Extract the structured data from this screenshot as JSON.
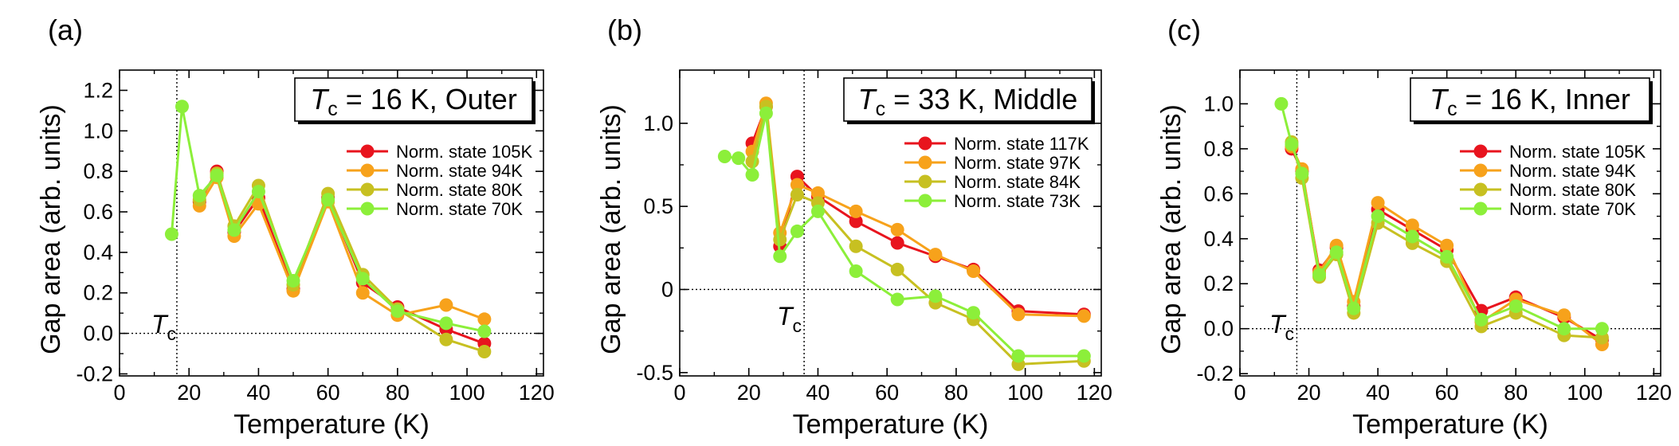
{
  "chart_data": [
    {
      "type": "line",
      "panel_label": "(a)",
      "title_symbol": "T",
      "title_sub": "c",
      "title_rest": " = 16 K, Outer",
      "xlabel": "Temperature (K)",
      "ylabel": "Gap area (arb. units)",
      "xlim": [
        0,
        122
      ],
      "ylim": [
        -0.21,
        1.3
      ],
      "xticks": [
        0,
        20,
        40,
        60,
        80,
        100,
        120
      ],
      "xtick_labels": [
        "0",
        "20",
        "40",
        "60",
        "80",
        "100",
        "120"
      ],
      "yticks": [
        -0.2,
        0,
        0.2,
        0.4,
        0.6,
        0.8,
        1.0,
        1.2
      ],
      "ytick_labels": [
        "-0.2",
        "0.0",
        "0.2",
        "0.4",
        "0.6",
        "0.8",
        "1.0",
        "1.2"
      ],
      "tc_value": 16.5,
      "tc_symbol": "T",
      "tc_sub": "c",
      "zero_line": true,
      "legend_position": "right",
      "series": [
        {
          "name": "Norm. state 105K",
          "color": "#e8141e",
          "x": [
            23,
            28,
            33,
            40,
            50,
            60,
            70,
            80,
            94,
            105
          ],
          "y": [
            0.65,
            0.8,
            0.5,
            0.67,
            0.22,
            0.67,
            0.25,
            0.13,
            0.02,
            -0.05
          ]
        },
        {
          "name": "Norm. state 94K",
          "color": "#f7a21b",
          "x": [
            23,
            28,
            33,
            40,
            50,
            60,
            70,
            80,
            94,
            105
          ],
          "y": [
            0.63,
            0.77,
            0.48,
            0.64,
            0.21,
            0.65,
            0.2,
            0.09,
            0.14,
            0.07
          ]
        },
        {
          "name": "Norm. state 80K",
          "color": "#c7c021",
          "x": [
            23,
            28,
            33,
            40,
            50,
            60,
            70,
            80,
            94,
            105
          ],
          "y": [
            0.66,
            0.79,
            0.53,
            0.73,
            0.24,
            0.69,
            0.29,
            0.12,
            -0.03,
            -0.09
          ]
        },
        {
          "name": "Norm. state 70K",
          "color": "#8cef3a",
          "x": [
            15,
            18,
            23,
            28,
            33,
            40,
            50,
            60,
            70,
            80,
            94,
            105
          ],
          "y": [
            0.49,
            1.12,
            0.68,
            0.78,
            0.51,
            0.7,
            0.26,
            0.66,
            0.27,
            0.11,
            0.05,
            0.01
          ]
        }
      ]
    },
    {
      "type": "line",
      "panel_label": "(b)",
      "title_symbol": "T",
      "title_sub": "c",
      "title_rest": " = 33 K, Middle",
      "xlabel": "Temperature (K)",
      "ylabel": "Gap area (arb. units)",
      "xlim": [
        0,
        122
      ],
      "ylim": [
        -0.52,
        1.32
      ],
      "xticks": [
        0,
        20,
        40,
        60,
        80,
        100,
        120
      ],
      "xtick_labels": [
        "0",
        "20",
        "40",
        "60",
        "80",
        "100",
        "120"
      ],
      "yticks": [
        -0.5,
        0,
        0.5,
        1.0
      ],
      "ytick_labels": [
        "-0.5",
        "0",
        "0.5",
        "1.0"
      ],
      "tc_value": 36,
      "tc_symbol": "T",
      "tc_sub": "c",
      "zero_line": true,
      "legend_position": "right",
      "series": [
        {
          "name": "Norm. state 117K",
          "color": "#e8141e",
          "x": [
            21,
            25,
            29,
            34,
            40,
            51,
            63,
            74,
            85,
            98,
            117
          ],
          "y": [
            0.88,
            1.1,
            0.26,
            0.68,
            0.56,
            0.41,
            0.28,
            0.2,
            0.12,
            -0.13,
            -0.15
          ]
        },
        {
          "name": "Norm. state 97K",
          "color": "#f7a21b",
          "x": [
            21,
            25,
            29,
            34,
            40,
            51,
            63,
            74,
            85,
            98,
            117
          ],
          "y": [
            0.83,
            1.12,
            0.34,
            0.63,
            0.58,
            0.47,
            0.36,
            0.21,
            0.11,
            -0.15,
            -0.16
          ]
        },
        {
          "name": "Norm. state 84K",
          "color": "#c7c021",
          "x": [
            21,
            25,
            29,
            34,
            40,
            51,
            63,
            74,
            85,
            98,
            117
          ],
          "y": [
            0.77,
            1.1,
            0.3,
            0.57,
            0.52,
            0.26,
            0.12,
            -0.08,
            -0.18,
            -0.45,
            -0.43
          ]
        },
        {
          "name": "Norm. state 73K",
          "color": "#8cef3a",
          "x": [
            13,
            17,
            21,
            25,
            29,
            34,
            40,
            51,
            63,
            74,
            85,
            98,
            117
          ],
          "y": [
            0.8,
            0.79,
            0.69,
            1.06,
            0.2,
            0.35,
            0.47,
            0.11,
            -0.06,
            -0.04,
            -0.14,
            -0.4,
            -0.4
          ]
        }
      ]
    },
    {
      "type": "line",
      "panel_label": "(c)",
      "title_symbol": "T",
      "title_sub": "c",
      "title_rest": " = 16 K, Inner",
      "xlabel": "Temperature (K)",
      "ylabel": "Gap area (arb. units)",
      "xlim": [
        0,
        122
      ],
      "ylim": [
        -0.21,
        1.15
      ],
      "xticks": [
        0,
        20,
        40,
        60,
        80,
        100,
        120
      ],
      "xtick_labels": [
        "0",
        "20",
        "40",
        "60",
        "80",
        "100",
        "120"
      ],
      "yticks": [
        -0.2,
        0,
        0.2,
        0.4,
        0.6,
        0.8,
        1.0
      ],
      "ytick_labels": [
        "-0.2",
        "0.0",
        "0.2",
        "0.4",
        "0.6",
        "0.8",
        "1.0"
      ],
      "tc_value": 16.5,
      "tc_symbol": "T",
      "tc_sub": "c",
      "zero_line": true,
      "legend_position": "right",
      "series": [
        {
          "name": "Norm. state 105K",
          "color": "#e8141e",
          "x": [
            15,
            18,
            23,
            28,
            33,
            40,
            50,
            60,
            70,
            80,
            94,
            105
          ],
          "y": [
            0.8,
            0.7,
            0.26,
            0.36,
            0.1,
            0.53,
            0.44,
            0.35,
            0.08,
            0.14,
            0.05,
            -0.05
          ]
        },
        {
          "name": "Norm. state 94K",
          "color": "#f7a21b",
          "x": [
            15,
            18,
            23,
            28,
            33,
            40,
            50,
            60,
            70,
            80,
            94,
            105
          ],
          "y": [
            0.81,
            0.71,
            0.25,
            0.37,
            0.12,
            0.56,
            0.46,
            0.37,
            0.03,
            0.13,
            0.06,
            -0.07
          ]
        },
        {
          "name": "Norm. state 80K",
          "color": "#c7c021",
          "x": [
            15,
            18,
            23,
            28,
            33,
            40,
            50,
            60,
            70,
            80,
            94,
            105
          ],
          "y": [
            0.83,
            0.67,
            0.23,
            0.33,
            0.07,
            0.47,
            0.38,
            0.3,
            0.01,
            0.07,
            -0.03,
            -0.04
          ]
        },
        {
          "name": "Norm. state 70K",
          "color": "#8cef3a",
          "x": [
            12,
            15,
            18,
            23,
            28,
            33,
            40,
            50,
            60,
            70,
            80,
            94,
            105
          ],
          "y": [
            1.0,
            0.82,
            0.69,
            0.24,
            0.34,
            0.09,
            0.5,
            0.41,
            0.32,
            0.04,
            0.1,
            0.0,
            0.0
          ]
        }
      ]
    }
  ]
}
